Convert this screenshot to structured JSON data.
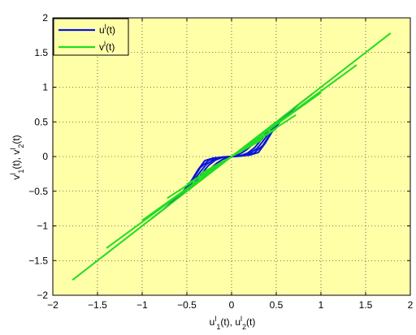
{
  "chart_data": {
    "type": "line",
    "xlim": [
      -2,
      2
    ],
    "ylim": [
      -2,
      2
    ],
    "xticks": [
      -2,
      -1.5,
      -1,
      -0.5,
      0,
      0.5,
      1,
      1.5,
      2
    ],
    "yticks": [
      -2,
      -1.5,
      -1,
      -0.5,
      0,
      0.5,
      1,
      1.5,
      2
    ],
    "xtick_labels": [
      "−2",
      "−1.5",
      "−1",
      "−0.5",
      "0",
      "0.5",
      "1",
      "1.5",
      "2"
    ],
    "ytick_labels": [
      "−2",
      "−1.5",
      "−1",
      "−0.5",
      "0",
      "0.5",
      "1",
      "1.5",
      "2"
    ],
    "xlabel": {
      "base": "u",
      "sup1": "l",
      "sub1": "1",
      "mid": "(t), u",
      "sup2": "l",
      "sub2": "2",
      "end": "(t)"
    },
    "ylabel": {
      "base": "v",
      "sup1": "l",
      "sub1": "1",
      "mid": "(t), v",
      "sup2": "l",
      "sub2": "2",
      "end": "(t)"
    },
    "grid": true,
    "legend_position": "top-left",
    "legend": [
      {
        "base": "u",
        "sup": "l",
        "end": "(t)",
        "color": "#0a14d8"
      },
      {
        "base": "v",
        "sup": "l",
        "end": "(t)",
        "color": "#22dd22"
      }
    ],
    "colors": {
      "plot_background": "#ffffa8",
      "u_color": "#0a14d8",
      "v_color": "#22dd22"
    },
    "series": [
      {
        "color": "#0a14d8",
        "x": [
          -0.9,
          -0.7,
          -0.55,
          -0.45,
          -0.38,
          -0.3,
          -0.2,
          -0.1,
          0,
          0.1,
          0.2,
          0.3,
          0.38,
          0.45,
          0.55,
          0.7,
          0.9
        ],
        "y": [
          -0.9,
          -0.7,
          -0.52,
          -0.35,
          -0.2,
          -0.06,
          -0.02,
          -0.01,
          0,
          0.01,
          0.02,
          0.06,
          0.2,
          0.35,
          0.52,
          0.7,
          0.9
        ]
      },
      {
        "color": "#0a14d8",
        "x": [
          -0.75,
          -0.6,
          -0.5,
          -0.42,
          -0.35,
          -0.25,
          -0.12,
          0,
          0.12,
          0.25,
          0.35,
          0.42,
          0.5,
          0.6,
          0.75
        ],
        "y": [
          -0.75,
          -0.58,
          -0.44,
          -0.3,
          -0.16,
          -0.05,
          -0.01,
          0,
          0.01,
          0.05,
          0.16,
          0.3,
          0.44,
          0.58,
          0.75
        ]
      },
      {
        "color": "#0a14d8",
        "x": [
          -0.6,
          -0.5,
          -0.42,
          -0.35,
          -0.28,
          -0.18,
          -0.08,
          0,
          0.08,
          0.18,
          0.28,
          0.35,
          0.42,
          0.5,
          0.6
        ],
        "y": [
          -0.6,
          -0.47,
          -0.34,
          -0.22,
          -0.11,
          -0.03,
          -0.005,
          0,
          0.005,
          0.03,
          0.11,
          0.22,
          0.34,
          0.47,
          0.6
        ]
      },
      {
        "color": "#0a14d8",
        "x": [
          -0.48,
          -0.4,
          -0.33,
          -0.26,
          -0.18,
          -0.1,
          0,
          0.1,
          0.18,
          0.26,
          0.33,
          0.4,
          0.48
        ],
        "y": [
          -0.48,
          -0.36,
          -0.24,
          -0.13,
          -0.05,
          -0.01,
          0,
          0.01,
          0.05,
          0.13,
          0.24,
          0.36,
          0.48
        ]
      },
      {
        "color": "#0a14d8",
        "x": [
          -0.35,
          -0.3,
          -0.24,
          -0.17,
          -0.1,
          -0.04,
          0,
          0.04,
          0.1,
          0.17,
          0.24,
          0.3,
          0.35
        ],
        "y": [
          -0.35,
          -0.27,
          -0.18,
          -0.1,
          -0.04,
          -0.01,
          0,
          0.01,
          0.04,
          0.1,
          0.18,
          0.27,
          0.35
        ]
      },
      {
        "color": "#22dd22",
        "x": [
          -1.78,
          1.78
        ],
        "y": [
          -1.78,
          1.78
        ]
      },
      {
        "color": "#22dd22",
        "x": [
          -1.4,
          1.4
        ],
        "y": [
          -1.32,
          1.32
        ]
      },
      {
        "color": "#22dd22",
        "x": [
          -1.0,
          1.0
        ],
        "y": [
          -0.92,
          0.92
        ]
      },
      {
        "color": "#22dd22",
        "x": [
          -0.72,
          0.72
        ],
        "y": [
          -0.6,
          0.6
        ]
      },
      {
        "color": "#22dd22",
        "x": [
          -0.5,
          0.5
        ],
        "y": [
          -0.4,
          0.4
        ]
      },
      {
        "color": "#22dd22",
        "x": [
          -0.35,
          0.35
        ],
        "y": [
          -0.25,
          0.25
        ]
      }
    ]
  }
}
